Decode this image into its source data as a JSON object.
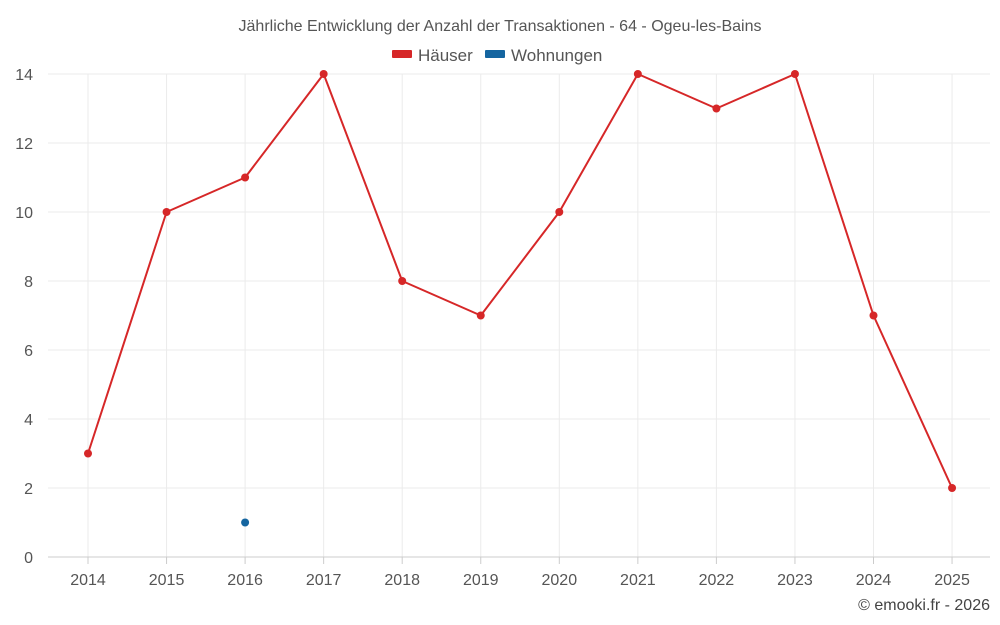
{
  "chart_data": {
    "type": "line",
    "title": "Jährliche Entwicklung der Anzahl der Transaktionen - 64 - Ogeu-les-Bains",
    "categories": [
      "2014",
      "2015",
      "2016",
      "2017",
      "2018",
      "2019",
      "2020",
      "2021",
      "2022",
      "2023",
      "2024",
      "2025"
    ],
    "series": [
      {
        "name": "Häuser",
        "color": "#d62728",
        "values": [
          3,
          10,
          11,
          14,
          8,
          7,
          10,
          14,
          13,
          14,
          7,
          2
        ]
      },
      {
        "name": "Wohnungen",
        "color": "#1565a0",
        "values": [
          null,
          null,
          1,
          null,
          null,
          null,
          null,
          null,
          null,
          null,
          null,
          null
        ]
      }
    ],
    "ylim": [
      0,
      14
    ],
    "yticks": [
      0,
      2,
      4,
      6,
      8,
      10,
      12,
      14
    ],
    "xlabel": "",
    "ylabel": "",
    "grid": true,
    "legend_position": "top-center"
  },
  "credit": "© emooki.fr - 2026"
}
